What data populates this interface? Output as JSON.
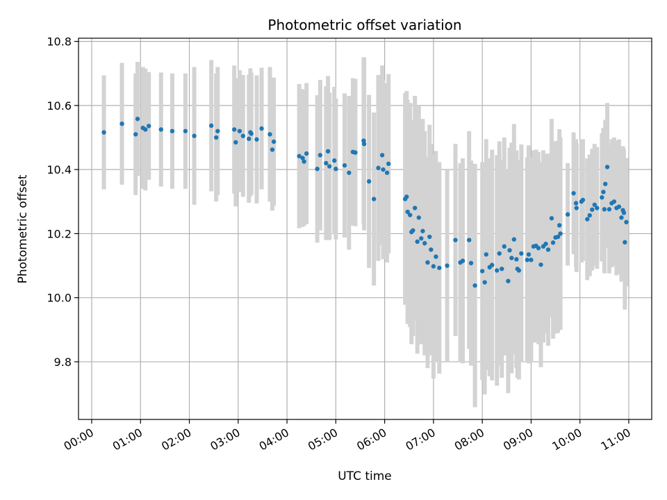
{
  "chart_data": {
    "type": "scatter",
    "title": "Photometric offset variation",
    "xlabel": "UTC time",
    "ylabel": "Photometric offset",
    "x_tick_labels": [
      "00:00",
      "01:00",
      "02:00",
      "03:00",
      "04:00",
      "05:00",
      "06:00",
      "07:00",
      "08:00",
      "09:00",
      "10:00",
      "11:00"
    ],
    "y_tick_labels": [
      "9.8",
      "10.0",
      "10.2",
      "10.4",
      "10.6",
      "10.8"
    ],
    "x_tick_hours": [
      0,
      1,
      2,
      3,
      4,
      5,
      6,
      7,
      8,
      9,
      10,
      11
    ],
    "y_tick_values": [
      9.8,
      10.0,
      10.2,
      10.4,
      10.6,
      10.8
    ],
    "xlim_hours": [
      -0.27,
      11.47
    ],
    "ylim": [
      9.62,
      10.81
    ],
    "grid": true,
    "colors": {
      "points": "#1f77b4",
      "error_bars": "#d3d3d3",
      "grid": "#b0b0b0"
    },
    "series": [
      {
        "points": [
          [
            0.25,
            10.516,
            0.178
          ],
          [
            0.62,
            10.543,
            0.19
          ],
          [
            0.9,
            10.51,
            0.19
          ],
          [
            0.94,
            10.558,
            0.178
          ],
          [
            1.05,
            10.53,
            0.19
          ],
          [
            1.1,
            10.525,
            0.19
          ],
          [
            1.17,
            10.536,
            0.168
          ],
          [
            1.42,
            10.525,
            0.178
          ],
          [
            1.65,
            10.52,
            0.18
          ],
          [
            1.92,
            10.52,
            0.18
          ],
          [
            2.1,
            10.505,
            0.215
          ],
          [
            2.45,
            10.537,
            0.205
          ],
          [
            2.55,
            10.5,
            0.2
          ],
          [
            2.58,
            10.52,
            0.2
          ],
          [
            2.92,
            10.525,
            0.2
          ],
          [
            2.95,
            10.485,
            0.2
          ],
          [
            3.03,
            10.52,
            0.19
          ],
          [
            3.1,
            10.505,
            0.19
          ],
          [
            3.22,
            10.496,
            0.2
          ],
          [
            3.25,
            10.516,
            0.2
          ],
          [
            3.27,
            10.512,
            0.19
          ],
          [
            3.38,
            10.494,
            0.2
          ],
          [
            3.48,
            10.528,
            0.19
          ],
          [
            3.65,
            10.51,
            0.21
          ],
          [
            3.7,
            10.462,
            0.19
          ],
          [
            3.73,
            10.487,
            0.2
          ],
          [
            4.25,
            10.442,
            0.225
          ],
          [
            4.32,
            10.436,
            0.215
          ],
          [
            4.35,
            10.425,
            0.2
          ],
          [
            4.4,
            10.45,
            0.22
          ],
          [
            4.62,
            10.402,
            0.23
          ],
          [
            4.68,
            10.445,
            0.235
          ],
          [
            4.8,
            10.42,
            0.24
          ],
          [
            4.84,
            10.457,
            0.235
          ],
          [
            4.87,
            10.41,
            0.23
          ],
          [
            4.97,
            10.428,
            0.23
          ],
          [
            5.0,
            10.402,
            0.22
          ],
          [
            5.18,
            10.413,
            0.225
          ],
          [
            5.27,
            10.39,
            0.24
          ],
          [
            5.35,
            10.455,
            0.23
          ],
          [
            5.4,
            10.453,
            0.23
          ],
          [
            5.57,
            10.49,
            0.26
          ],
          [
            5.58,
            10.48,
            0.27
          ],
          [
            5.68,
            10.363,
            0.27
          ],
          [
            5.78,
            10.308,
            0.27
          ],
          [
            5.87,
            10.405,
            0.29
          ],
          [
            5.95,
            10.445,
            0.28
          ],
          [
            5.97,
            10.4,
            0.28
          ],
          [
            6.05,
            10.39,
            0.28
          ],
          [
            6.08,
            10.418,
            0.28
          ],
          [
            6.42,
            10.308,
            0.33
          ],
          [
            6.45,
            10.315,
            0.33
          ],
          [
            6.47,
            10.268,
            0.35
          ],
          [
            6.52,
            10.258,
            0.35
          ],
          [
            6.55,
            10.205,
            0.35
          ],
          [
            6.58,
            10.21,
            0.33
          ],
          [
            6.62,
            10.28,
            0.35
          ],
          [
            6.67,
            10.175,
            0.35
          ],
          [
            6.7,
            10.25,
            0.35
          ],
          [
            6.75,
            10.185,
            0.33
          ],
          [
            6.78,
            10.208,
            0.35
          ],
          [
            6.82,
            10.17,
            0.35
          ],
          [
            6.88,
            10.11,
            0.33
          ],
          [
            6.92,
            10.19,
            0.35
          ],
          [
            6.95,
            10.15,
            0.33
          ],
          [
            7.0,
            10.098,
            0.35
          ],
          [
            7.05,
            10.128,
            0.33
          ],
          [
            7.12,
            10.093,
            0.33
          ],
          [
            7.28,
            10.1,
            0.3
          ],
          [
            7.45,
            10.18,
            0.3
          ],
          [
            7.55,
            10.11,
            0.31
          ],
          [
            7.6,
            10.115,
            0.32
          ],
          [
            7.73,
            10.18,
            0.34
          ],
          [
            7.77,
            10.108,
            0.32
          ],
          [
            7.85,
            10.038,
            0.38
          ],
          [
            8.0,
            10.083,
            0.34
          ],
          [
            8.05,
            10.048,
            0.35
          ],
          [
            8.08,
            10.135,
            0.36
          ],
          [
            8.15,
            10.095,
            0.34
          ],
          [
            8.2,
            10.102,
            0.36
          ],
          [
            8.3,
            10.085,
            0.36
          ],
          [
            8.35,
            10.138,
            0.35
          ],
          [
            8.4,
            10.09,
            0.34
          ],
          [
            8.45,
            10.16,
            0.34
          ],
          [
            8.53,
            10.052,
            0.35
          ],
          [
            8.56,
            10.148,
            0.32
          ],
          [
            8.6,
            10.124,
            0.36
          ],
          [
            8.65,
            10.182,
            0.36
          ],
          [
            8.7,
            10.12,
            0.34
          ],
          [
            8.72,
            10.09,
            0.34
          ],
          [
            8.75,
            10.085,
            0.34
          ],
          [
            8.8,
            10.138,
            0.34
          ],
          [
            8.92,
            10.118,
            0.32
          ],
          [
            8.95,
            10.135,
            0.34
          ],
          [
            9.0,
            10.118,
            0.32
          ],
          [
            9.05,
            10.16,
            0.3
          ],
          [
            9.1,
            10.162,
            0.3
          ],
          [
            9.15,
            10.155,
            0.3
          ],
          [
            9.2,
            10.103,
            0.32
          ],
          [
            9.25,
            10.16,
            0.3
          ],
          [
            9.3,
            10.168,
            0.28
          ],
          [
            9.35,
            10.15,
            0.3
          ],
          [
            9.42,
            10.248,
            0.31
          ],
          [
            9.45,
            10.172,
            0.3
          ],
          [
            9.5,
            10.188,
            0.3
          ],
          [
            9.55,
            10.19,
            0.3
          ],
          [
            9.58,
            10.226,
            0.3
          ],
          [
            9.6,
            10.2,
            0.3
          ],
          [
            9.75,
            10.26,
            0.16
          ],
          [
            9.87,
            10.326,
            0.19
          ],
          [
            9.92,
            10.295,
            0.2
          ],
          [
            9.93,
            10.28,
            0.2
          ],
          [
            10.03,
            10.3,
            0.19
          ],
          [
            10.06,
            10.305,
            0.19
          ],
          [
            10.15,
            10.245,
            0.19
          ],
          [
            10.2,
            10.257,
            0.19
          ],
          [
            10.25,
            10.275,
            0.19
          ],
          [
            10.3,
            10.29,
            0.19
          ],
          [
            10.35,
            10.28,
            0.19
          ],
          [
            10.45,
            10.313,
            0.2
          ],
          [
            10.48,
            10.33,
            0.2
          ],
          [
            10.5,
            10.276,
            0.2
          ],
          [
            10.52,
            10.355,
            0.2
          ],
          [
            10.56,
            10.408,
            0.2
          ],
          [
            10.6,
            10.276,
            0.2
          ],
          [
            10.65,
            10.295,
            0.2
          ],
          [
            10.7,
            10.3,
            0.2
          ],
          [
            10.75,
            10.28,
            0.21
          ],
          [
            10.8,
            10.284,
            0.21
          ],
          [
            10.85,
            10.25,
            0.2
          ],
          [
            10.88,
            10.273,
            0.2
          ],
          [
            10.9,
            10.265,
            0.2
          ],
          [
            10.92,
            10.173,
            0.21
          ],
          [
            10.95,
            10.236,
            0.2
          ]
        ]
      }
    ]
  }
}
